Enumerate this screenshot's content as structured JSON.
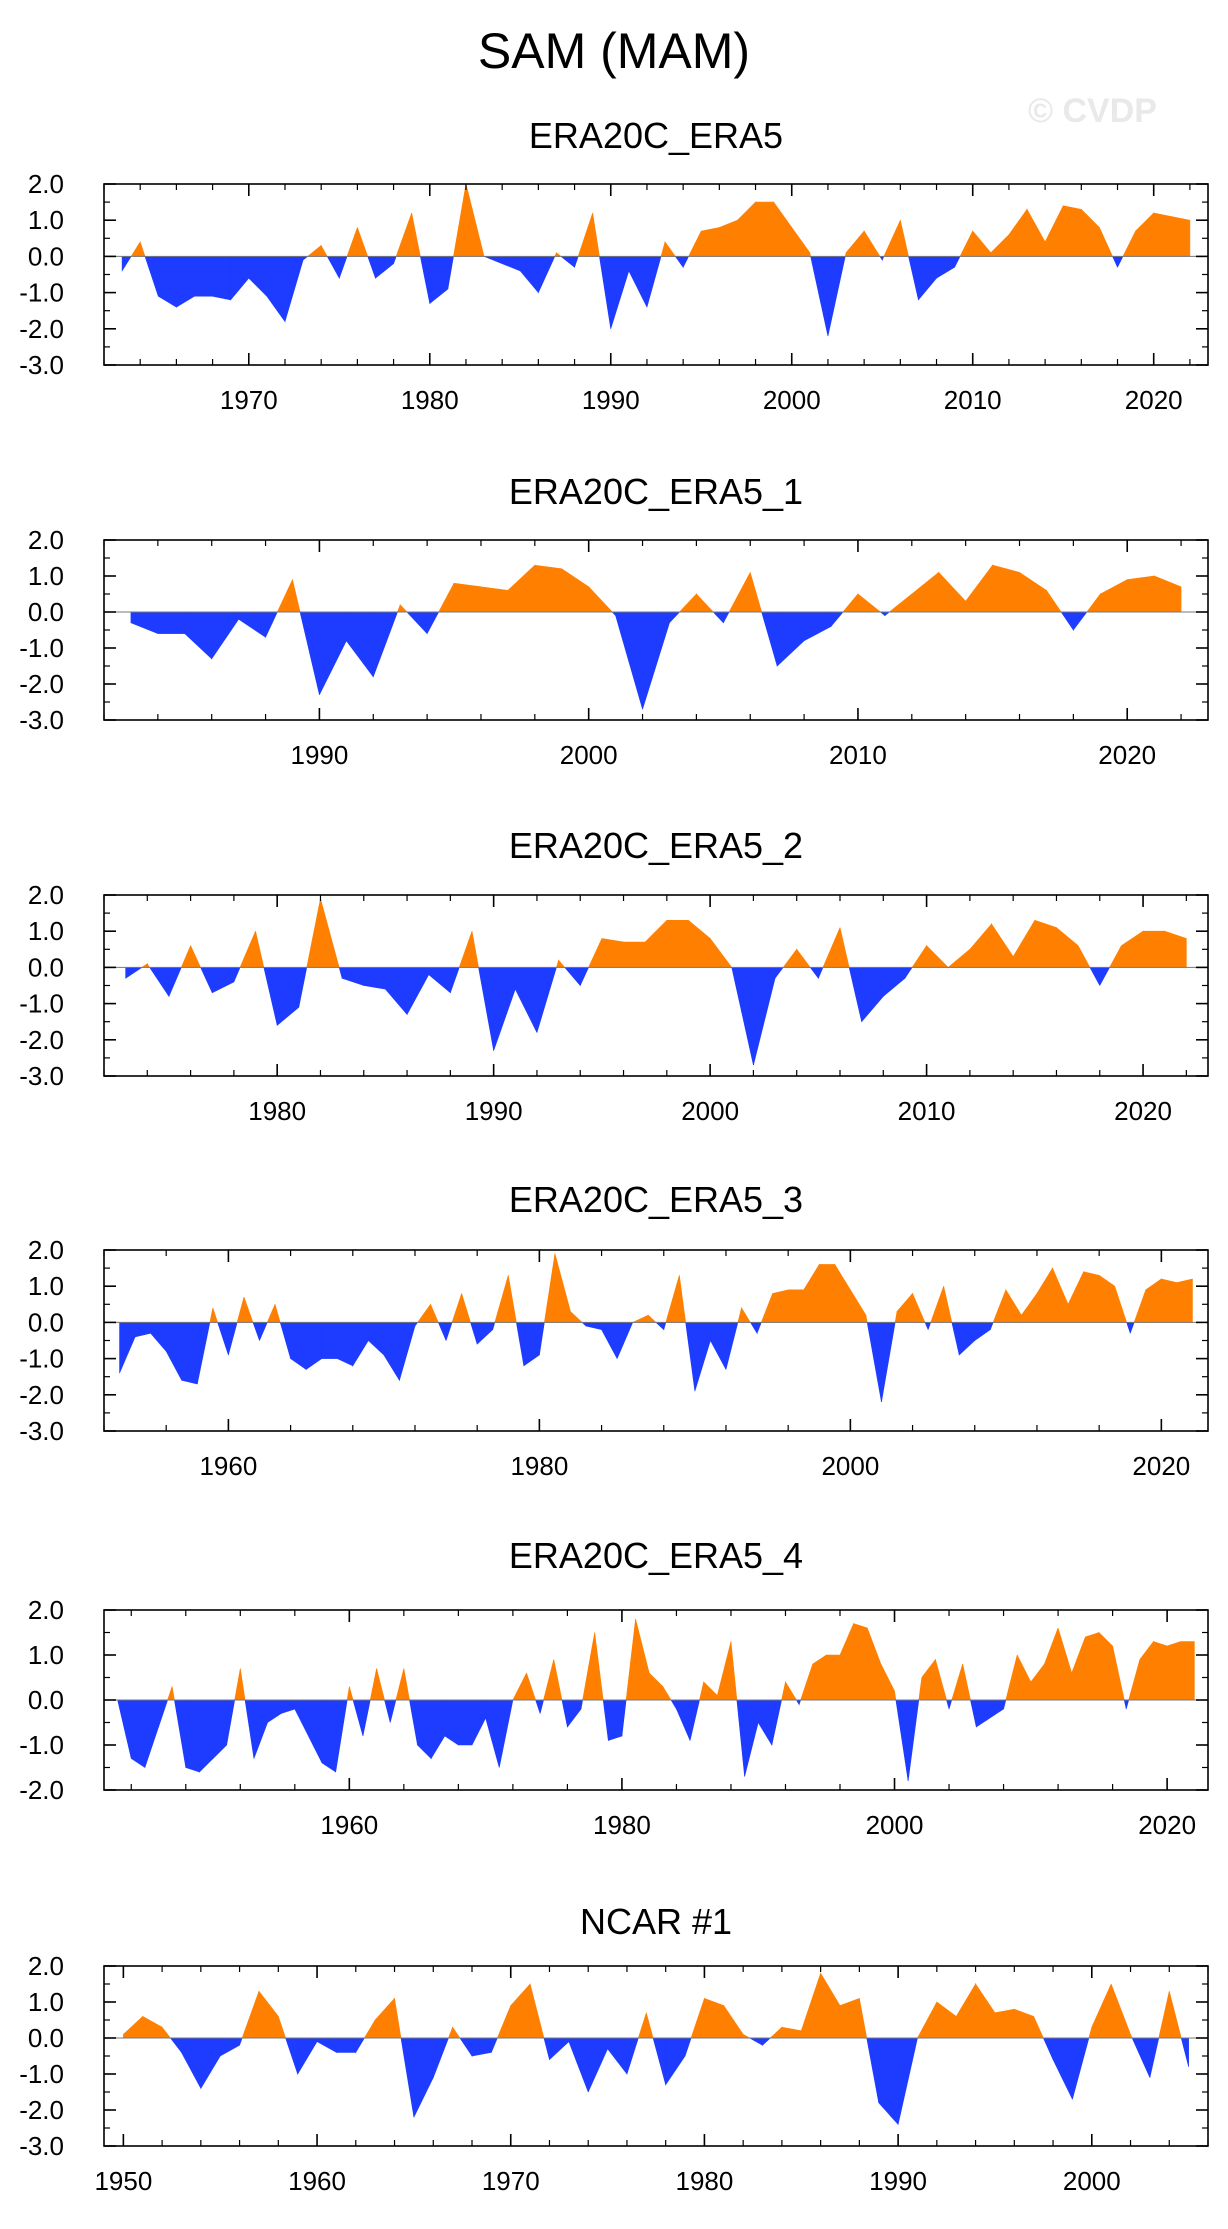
{
  "page": {
    "title": "SAM (MAM)",
    "watermark": "© CVDP"
  },
  "colors": {
    "positive": "#ff8000",
    "negative": "#1e3cff",
    "axis": "#000000"
  },
  "chart_data": [
    {
      "type": "area",
      "title": "ERA20C_ERA5",
      "xlim": [
        1962,
        2023
      ],
      "ylim": [
        -3.0,
        2.0
      ],
      "yticks": [
        "2.0",
        "1.0",
        "0.0",
        "-1.0",
        "-2.0",
        "-3.0"
      ],
      "xticks": [
        1970,
        1980,
        1990,
        2000,
        2010,
        2020
      ],
      "x": [
        1963,
        1964,
        1965,
        1966,
        1967,
        1968,
        1969,
        1970,
        1971,
        1972,
        1973,
        1974,
        1975,
        1976,
        1977,
        1978,
        1979,
        1980,
        1981,
        1982,
        1983,
        1984,
        1985,
        1986,
        1987,
        1988,
        1989,
        1990,
        1991,
        1992,
        1993,
        1994,
        1995,
        1996,
        1997,
        1998,
        1999,
        2000,
        2001,
        2002,
        2003,
        2004,
        2005,
        2006,
        2007,
        2008,
        2009,
        2010,
        2011,
        2012,
        2013,
        2014,
        2015,
        2016,
        2017,
        2018,
        2019,
        2020,
        2021,
        2022
      ],
      "values": [
        -0.4,
        0.4,
        -1.1,
        -1.4,
        -1.1,
        -1.1,
        -1.2,
        -0.6,
        -1.1,
        -1.8,
        -0.1,
        0.3,
        -0.6,
        0.8,
        -0.6,
        -0.2,
        1.2,
        -1.3,
        -0.9,
        2.0,
        0.0,
        -0.2,
        -0.4,
        -1.0,
        0.1,
        -0.3,
        1.2,
        -2.0,
        -0.4,
        -1.4,
        0.4,
        -0.3,
        0.7,
        0.8,
        1.0,
        1.5,
        1.5,
        0.8,
        0.1,
        -2.2,
        0.1,
        0.7,
        -0.1,
        1.0,
        -1.2,
        -0.6,
        -0.3,
        0.7,
        0.1,
        0.6,
        1.3,
        0.4,
        1.4,
        1.3,
        0.8,
        -0.3,
        0.7,
        1.2,
        1.1,
        1.0
      ]
    },
    {
      "type": "area",
      "title": "ERA20C_ERA5_1",
      "xlim": [
        1982,
        2023
      ],
      "ylim": [
        -3.0,
        2.0
      ],
      "yticks": [
        "2.0",
        "1.0",
        "0.0",
        "-1.0",
        "-2.0",
        "-3.0"
      ],
      "xticks": [
        1990,
        2000,
        2010,
        2020
      ],
      "x": [
        1983,
        1984,
        1985,
        1986,
        1987,
        1988,
        1989,
        1990,
        1991,
        1992,
        1993,
        1994,
        1995,
        1996,
        1997,
        1998,
        1999,
        2000,
        2001,
        2002,
        2003,
        2004,
        2005,
        2006,
        2007,
        2008,
        2009,
        2010,
        2011,
        2012,
        2013,
        2014,
        2015,
        2016,
        2017,
        2018,
        2019,
        2020,
        2021,
        2022
      ],
      "values": [
        -0.3,
        -0.6,
        -0.6,
        -1.3,
        -0.2,
        -0.7,
        0.9,
        -2.3,
        -0.8,
        -1.8,
        0.2,
        -0.6,
        0.8,
        0.7,
        0.6,
        1.3,
        1.2,
        0.7,
        -0.1,
        -2.7,
        -0.3,
        0.5,
        -0.3,
        1.1,
        -1.5,
        -0.8,
        -0.4,
        0.5,
        -0.1,
        0.5,
        1.1,
        0.3,
        1.3,
        1.1,
        0.6,
        -0.5,
        0.5,
        0.9,
        1.0,
        0.7
      ]
    },
    {
      "type": "area",
      "title": "ERA20C_ERA5_2",
      "xlim": [
        1972,
        2023
      ],
      "ylim": [
        -3.0,
        2.0
      ],
      "yticks": [
        "2.0",
        "1.0",
        "0.0",
        "-1.0",
        "-2.0",
        "-3.0"
      ],
      "xticks": [
        1980,
        1990,
        2000,
        2010,
        2020
      ],
      "x": [
        1973,
        1974,
        1975,
        1976,
        1977,
        1978,
        1979,
        1980,
        1981,
        1982,
        1983,
        1984,
        1985,
        1986,
        1987,
        1988,
        1989,
        1990,
        1991,
        1992,
        1993,
        1994,
        1995,
        1996,
        1997,
        1998,
        1999,
        2000,
        2001,
        2002,
        2003,
        2004,
        2005,
        2006,
        2007,
        2008,
        2009,
        2010,
        2011,
        2012,
        2013,
        2014,
        2015,
        2016,
        2017,
        2018,
        2019,
        2020,
        2021,
        2022
      ],
      "values": [
        -0.3,
        0.1,
        -0.8,
        0.6,
        -0.7,
        -0.4,
        1.0,
        -1.6,
        -1.1,
        1.9,
        -0.3,
        -0.5,
        -0.6,
        -1.3,
        -0.2,
        -0.7,
        1.0,
        -2.3,
        -0.6,
        -1.8,
        0.2,
        -0.5,
        0.8,
        0.7,
        0.7,
        1.3,
        1.3,
        0.8,
        0.0,
        -2.7,
        -0.3,
        0.5,
        -0.3,
        1.1,
        -1.5,
        -0.8,
        -0.3,
        0.6,
        0.0,
        0.5,
        1.2,
        0.3,
        1.3,
        1.1,
        0.6,
        -0.5,
        0.6,
        1.0,
        1.0,
        0.8
      ]
    },
    {
      "type": "area",
      "title": "ERA20C_ERA5_3",
      "xlim": [
        1952,
        2023
      ],
      "ylim": [
        -3.0,
        2.0
      ],
      "yticks": [
        "2.0",
        "1.0",
        "0.0",
        "-1.0",
        "-2.0",
        "-3.0"
      ],
      "xticks": [
        1960,
        1980,
        2000,
        2020
      ],
      "x": [
        1953,
        1954,
        1955,
        1956,
        1957,
        1958,
        1959,
        1960,
        1961,
        1962,
        1963,
        1964,
        1965,
        1966,
        1967,
        1968,
        1969,
        1970,
        1971,
        1972,
        1973,
        1974,
        1975,
        1976,
        1977,
        1978,
        1979,
        1980,
        1981,
        1982,
        1983,
        1984,
        1985,
        1986,
        1987,
        1988,
        1989,
        1990,
        1991,
        1992,
        1993,
        1994,
        1995,
        1996,
        1997,
        1998,
        1999,
        2000,
        2001,
        2002,
        2003,
        2004,
        2005,
        2006,
        2007,
        2008,
        2009,
        2010,
        2011,
        2012,
        2013,
        2014,
        2015,
        2016,
        2017,
        2018,
        2019,
        2020,
        2021,
        2022
      ],
      "values": [
        -1.4,
        -0.4,
        -0.3,
        -0.8,
        -1.6,
        -1.7,
        0.4,
        -0.9,
        0.7,
        -0.5,
        0.5,
        -1.0,
        -1.3,
        -1.0,
        -1.0,
        -1.2,
        -0.5,
        -0.9,
        -1.6,
        -0.1,
        0.5,
        -0.5,
        0.8,
        -0.6,
        -0.2,
        1.3,
        -1.2,
        -0.9,
        1.9,
        0.3,
        -0.1,
        -0.2,
        -1.0,
        0.0,
        0.2,
        -0.2,
        1.3,
        -1.9,
        -0.5,
        -1.3,
        0.4,
        -0.3,
        0.8,
        0.9,
        0.9,
        1.6,
        1.6,
        0.9,
        0.2,
        -2.2,
        0.3,
        0.8,
        -0.2,
        1.0,
        -0.9,
        -0.5,
        -0.2,
        0.9,
        0.2,
        0.8,
        1.5,
        0.5,
        1.4,
        1.3,
        1.0,
        -0.3,
        0.9,
        1.2,
        1.1,
        1.2
      ]
    },
    {
      "type": "area",
      "title": "ERA20C_ERA5_4",
      "xlim": [
        1942,
        2023
      ],
      "ylim": [
        -2.0,
        2.0
      ],
      "yticks": [
        "2.0",
        "1.0",
        "0.0",
        "-1.0",
        "-2.0"
      ],
      "xticks": [
        1960,
        1980,
        2000,
        2020
      ],
      "x": [
        1943,
        1944,
        1945,
        1946,
        1947,
        1948,
        1949,
        1950,
        1951,
        1952,
        1953,
        1954,
        1955,
        1956,
        1957,
        1958,
        1959,
        1960,
        1961,
        1962,
        1963,
        1964,
        1965,
        1966,
        1967,
        1968,
        1969,
        1970,
        1971,
        1972,
        1973,
        1974,
        1975,
        1976,
        1977,
        1978,
        1979,
        1980,
        1981,
        1982,
        1983,
        1984,
        1985,
        1986,
        1987,
        1988,
        1989,
        1990,
        1991,
        1992,
        1993,
        1994,
        1995,
        1996,
        1997,
        1998,
        1999,
        2000,
        2001,
        2002,
        2003,
        2004,
        2005,
        2006,
        2007,
        2008,
        2009,
        2010,
        2011,
        2012,
        2013,
        2014,
        2015,
        2016,
        2017,
        2018,
        2019,
        2020,
        2021,
        2022
      ],
      "values": [
        0.0,
        -1.3,
        -1.5,
        -0.6,
        0.3,
        -1.5,
        -1.6,
        -1.3,
        -1.0,
        0.7,
        -1.3,
        -0.5,
        -0.3,
        -0.2,
        -0.8,
        -1.4,
        -1.6,
        0.3,
        -0.8,
        0.7,
        -0.5,
        0.7,
        -1.0,
        -1.3,
        -0.8,
        -1.0,
        -1.0,
        -0.4,
        -1.5,
        0.0,
        0.6,
        -0.3,
        0.9,
        -0.6,
        -0.2,
        1.5,
        -0.9,
        -0.8,
        1.8,
        0.6,
        0.3,
        -0.2,
        -0.9,
        0.4,
        0.1,
        1.3,
        -1.7,
        -0.5,
        -1.0,
        0.4,
        -0.1,
        0.8,
        1.0,
        1.0,
        1.7,
        1.6,
        0.8,
        0.2,
        -1.8,
        0.5,
        0.9,
        -0.2,
        0.8,
        -0.6,
        -0.4,
        -0.2,
        1.0,
        0.4,
        0.8,
        1.6,
        0.6,
        1.4,
        1.5,
        1.2,
        -0.2,
        0.9,
        1.3,
        1.2,
        1.3,
        1.3
      ]
    },
    {
      "type": "area",
      "title": "NCAR #1",
      "xlim": [
        1949,
        2006
      ],
      "ylim": [
        -3.0,
        2.0
      ],
      "yticks": [
        "2.0",
        "1.0",
        "0.0",
        "-1.0",
        "-2.0",
        "-3.0"
      ],
      "xticks": [
        1950,
        1960,
        1970,
        1980,
        1990,
        2000
      ],
      "x": [
        1950,
        1951,
        1952,
        1953,
        1954,
        1955,
        1956,
        1957,
        1958,
        1959,
        1960,
        1961,
        1962,
        1963,
        1964,
        1965,
        1966,
        1967,
        1968,
        1969,
        1970,
        1971,
        1972,
        1973,
        1974,
        1975,
        1976,
        1977,
        1978,
        1979,
        1980,
        1981,
        1982,
        1983,
        1984,
        1985,
        1986,
        1987,
        1988,
        1989,
        1990,
        1991,
        1992,
        1993,
        1994,
        1995,
        1996,
        1997,
        1998,
        1999,
        2000,
        2001,
        2002,
        2003,
        2004,
        2005
      ],
      "values": [
        0.1,
        0.6,
        0.3,
        -0.4,
        -1.4,
        -0.5,
        -0.2,
        1.3,
        0.6,
        -1.0,
        -0.1,
        -0.4,
        -0.4,
        0.5,
        1.1,
        -2.2,
        -1.1,
        0.3,
        -0.5,
        -0.4,
        0.9,
        1.5,
        -0.6,
        -0.1,
        -1.5,
        -0.3,
        -1.0,
        0.7,
        -1.3,
        -0.5,
        1.1,
        0.9,
        0.1,
        -0.2,
        0.3,
        0.2,
        1.8,
        0.9,
        1.1,
        -1.8,
        -2.4,
        0.0,
        1.0,
        0.6,
        1.5,
        0.7,
        0.8,
        0.6,
        -0.6,
        -1.7,
        0.3,
        1.5,
        0.1,
        -1.1,
        1.3,
        -0.8
      ]
    }
  ]
}
